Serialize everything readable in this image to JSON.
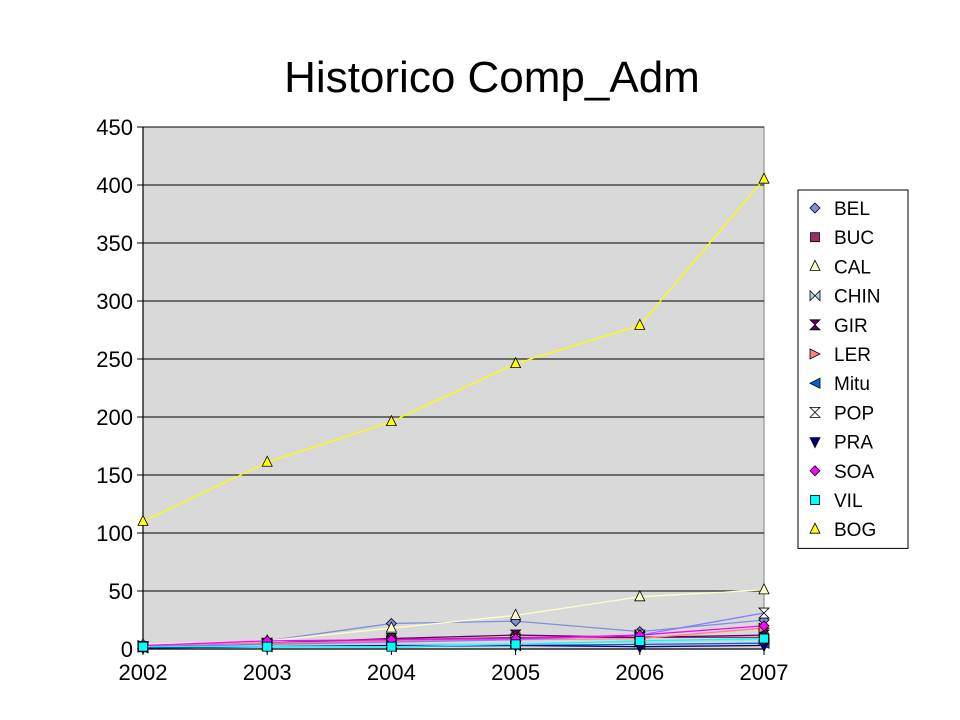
{
  "chart_data": {
    "type": "line",
    "title": "Historico Comp_Adm",
    "xlabel": "",
    "ylabel": "",
    "categories": [
      "2002",
      "2003",
      "2004",
      "2005",
      "2006",
      "2007"
    ],
    "ylim": [
      0,
      450
    ],
    "yticks": [
      0,
      50,
      100,
      150,
      200,
      250,
      300,
      350,
      400,
      450
    ],
    "plot_background": "#d9d9d9",
    "grid": true,
    "legend_position": "right",
    "series": [
      {
        "name": "BEL",
        "marker": "diamond",
        "color": "#7f8fdf",
        "values": [
          3,
          7,
          22,
          24,
          15,
          25
        ]
      },
      {
        "name": "BUC",
        "marker": "square",
        "color": "#993366",
        "values": [
          2,
          5,
          8,
          10,
          10,
          10
        ]
      },
      {
        "name": "CAL",
        "marker": "triangle",
        "color": "#ffffcc",
        "values": [
          4,
          7,
          18,
          29,
          45,
          51
        ]
      },
      {
        "name": "CHIN",
        "marker": "bowtie",
        "color": "#aed8e6",
        "values": [
          2,
          3,
          4,
          5,
          6,
          8
        ]
      },
      {
        "name": "GIR",
        "marker": "hourglass",
        "color": "#660066",
        "values": [
          2,
          5,
          9,
          12,
          10,
          12
        ]
      },
      {
        "name": "LER",
        "marker": "triangle-right",
        "color": "#ff8080",
        "values": [
          3,
          5,
          7,
          8,
          9,
          18
        ]
      },
      {
        "name": "Mitu",
        "marker": "triangle-left",
        "color": "#0066cc",
        "values": [
          1,
          2,
          2,
          3,
          4,
          5
        ]
      },
      {
        "name": "POP",
        "marker": "hourglass-open",
        "color": "#8080ff",
        "values": [
          2,
          4,
          6,
          8,
          12,
          31
        ]
      },
      {
        "name": "PRA",
        "marker": "triangle-down",
        "color": "#000080",
        "values": [
          1,
          2,
          3,
          3,
          2,
          3
        ]
      },
      {
        "name": "SOA",
        "marker": "diamond",
        "color": "#ff00ff",
        "values": [
          3,
          7,
          8,
          9,
          12,
          20
        ]
      },
      {
        "name": "VIL",
        "marker": "square",
        "color": "#00ffff",
        "values": [
          2,
          2,
          2,
          4,
          7,
          9
        ]
      },
      {
        "name": "BOG",
        "marker": "triangle",
        "color": "#ffff00",
        "values": [
          110,
          161,
          196,
          246,
          279,
          405
        ]
      }
    ]
  }
}
